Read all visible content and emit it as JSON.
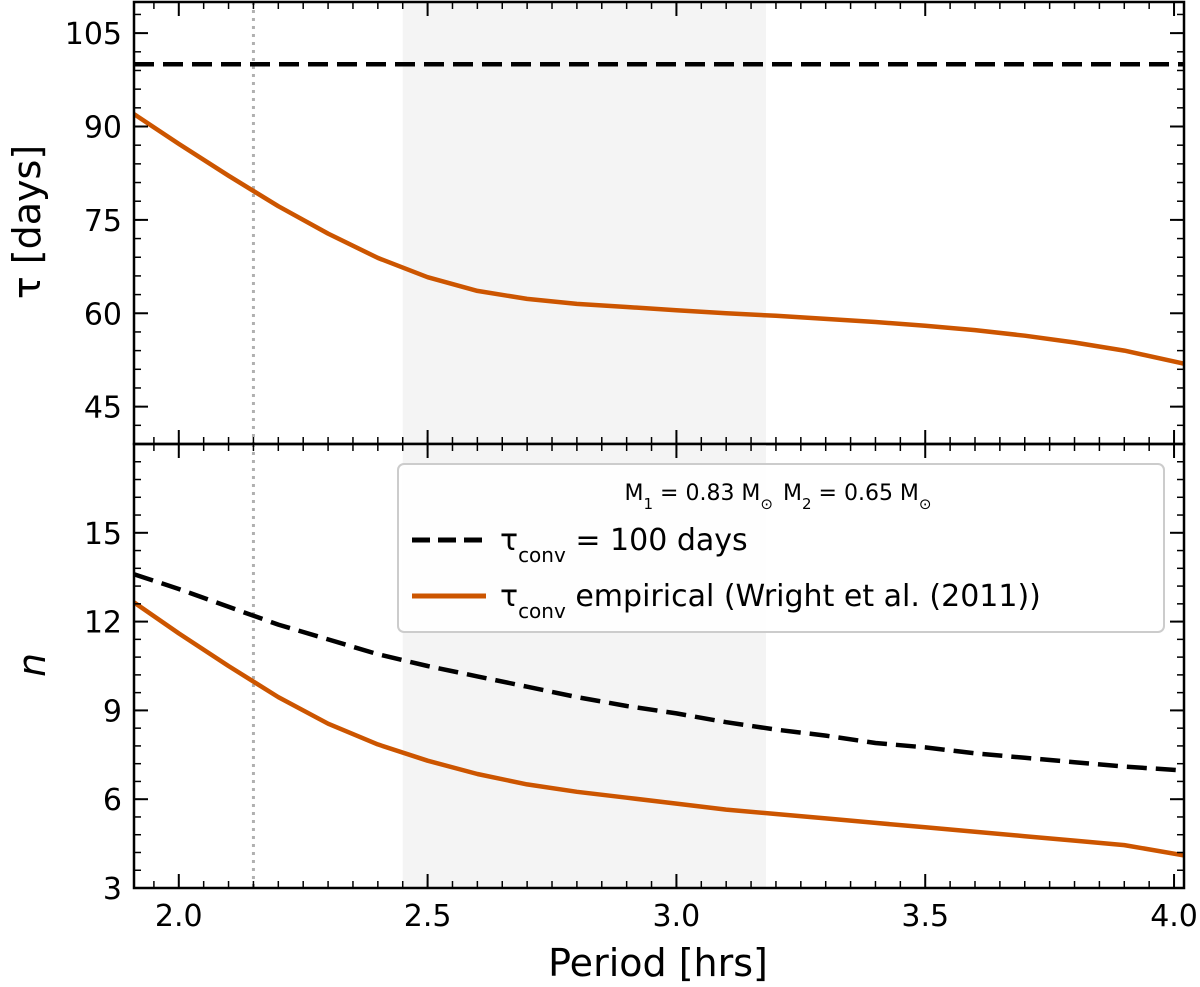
{
  "chart_data": [
    {
      "type": "line",
      "panel": "top",
      "ylabel": "τ [days]",
      "xlim": [
        1.91,
        4.02
      ],
      "ylim": [
        39,
        110
      ],
      "yticks_major": [
        45,
        60,
        75,
        90,
        105
      ],
      "yticks_minor_step": 3,
      "shaded_x_range": [
        2.45,
        3.18
      ],
      "vertical_line_x": 2.15,
      "series": [
        {
          "legend_ref": "tau_const",
          "color": "#000000",
          "dashed": true,
          "x": [
            1.91,
            4.02
          ],
          "y": [
            100,
            100
          ]
        },
        {
          "legend_ref": "tau_emp",
          "color": "#cc5500",
          "dashed": false,
          "x": [
            1.91,
            2.0,
            2.1,
            2.2,
            2.3,
            2.4,
            2.5,
            2.6,
            2.7,
            2.8,
            2.9,
            3.0,
            3.1,
            3.2,
            3.3,
            3.4,
            3.5,
            3.6,
            3.7,
            3.8,
            3.9,
            4.02
          ],
          "y": [
            92.0,
            87.2,
            82.1,
            77.2,
            72.8,
            68.9,
            65.8,
            63.6,
            62.3,
            61.5,
            61.0,
            60.5,
            60.0,
            59.6,
            59.1,
            58.6,
            58.0,
            57.3,
            56.4,
            55.3,
            54.0,
            51.9
          ]
        }
      ]
    },
    {
      "type": "line",
      "panel": "bottom",
      "xlabel": "Period [hrs]",
      "ylabel": "n",
      "xlim": [
        1.91,
        4.02
      ],
      "ylim": [
        3,
        18
      ],
      "xticks": [
        2.0,
        2.5,
        3.0,
        3.5,
        4.0
      ],
      "xtick_labels": [
        "2.0",
        "2.5",
        "3.0",
        "3.5",
        "4.0"
      ],
      "xticks_minor_step": 0.05,
      "yticks_major": [
        3,
        6,
        9,
        12,
        15
      ],
      "yticks_minor_step": 0.6,
      "shaded_x_range": [
        2.45,
        3.18
      ],
      "vertical_line_x": 2.15,
      "series": [
        {
          "legend_ref": "tau_const",
          "color": "#000000",
          "dashed": true,
          "x": [
            1.91,
            2.0,
            2.1,
            2.2,
            2.3,
            2.4,
            2.5,
            2.6,
            2.7,
            2.8,
            2.9,
            3.0,
            3.1,
            3.2,
            3.3,
            3.4,
            3.5,
            3.6,
            3.7,
            3.8,
            3.9,
            4.02
          ],
          "y": [
            13.6,
            13.1,
            12.5,
            11.9,
            11.4,
            10.9,
            10.5,
            10.15,
            9.8,
            9.45,
            9.15,
            8.9,
            8.6,
            8.35,
            8.15,
            7.9,
            7.75,
            7.55,
            7.4,
            7.25,
            7.1,
            6.97
          ]
        },
        {
          "legend_ref": "tau_emp",
          "color": "#cc5500",
          "dashed": false,
          "x": [
            1.91,
            2.0,
            2.1,
            2.2,
            2.3,
            2.4,
            2.5,
            2.6,
            2.7,
            2.8,
            2.9,
            3.0,
            3.1,
            3.2,
            3.3,
            3.4,
            3.5,
            3.6,
            3.7,
            3.8,
            3.9,
            4.02
          ],
          "y": [
            12.65,
            11.6,
            10.5,
            9.45,
            8.55,
            7.85,
            7.3,
            6.85,
            6.5,
            6.25,
            6.05,
            5.85,
            5.65,
            5.5,
            5.35,
            5.2,
            5.05,
            4.9,
            4.75,
            4.6,
            4.45,
            4.1
          ]
        }
      ]
    }
  ],
  "legend": {
    "title_m1": "M",
    "title_m1_sub": "1",
    "title_m1_val": " = 0.83 M",
    "title_m2": "M",
    "title_m2_sub": "2",
    "title_m2_val": " = 0.65 M",
    "sun_symbol": "⊙",
    "entries": [
      {
        "key": "tau_const",
        "symbol": "τ",
        "sub": "conv",
        "text": " = 100 days",
        "color": "#000000",
        "dashed": true
      },
      {
        "key": "tau_emp",
        "symbol": "τ",
        "sub": "conv",
        "text": " empirical (Wright et al. (2011))",
        "color": "#cc5500",
        "dashed": false
      }
    ]
  },
  "colors": {
    "shade": "#f4f4f4",
    "vline": "#b0b0b0",
    "emp": "#cc5500"
  }
}
